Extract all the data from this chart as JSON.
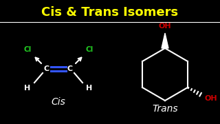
{
  "title": "Cis & Trans Isomers",
  "title_color": "#FFFF00",
  "title_fontsize": 13,
  "background_color": "#000000",
  "line_color": "#FFFFFF",
  "double_bond_color": "#3355FF",
  "cl_color": "#22CC22",
  "oh_color": "#CC0000",
  "cis_label": "Cis",
  "trans_label": "Trans",
  "figw": 3.2,
  "figh": 1.8,
  "dpi": 100
}
